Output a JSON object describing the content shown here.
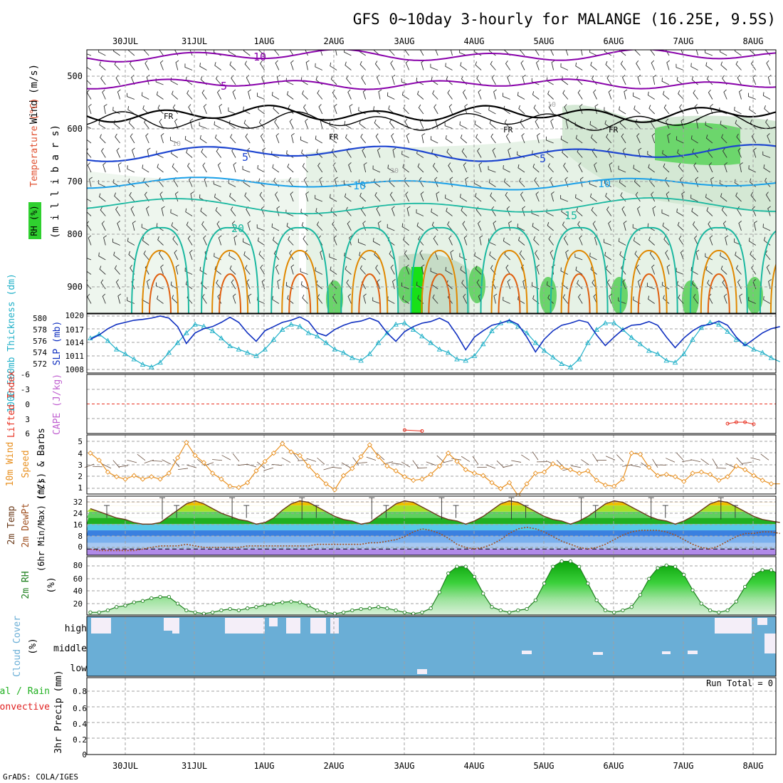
{
  "title": "GFS 0~10day 3-hourly for MALANGE (16.25E, 9.5S)",
  "credit": "GrADS: COLA/IGES",
  "dates": [
    "30JUL",
    "31JUL",
    "1AUG",
    "2AUG",
    "3AUG",
    "4AUG",
    "5AUG",
    "6AUG",
    "7AUG",
    "8AUG"
  ],
  "colors": {
    "grid": "#a0a0a0",
    "rh_fill": "#2fd02f",
    "temp_purple": "#8800aa",
    "temp_blue": "#1c44d0",
    "temp_light_blue": "#1aa0e8",
    "temp_teal": "#1ab8a0",
    "temp_orange": "#e08800",
    "slp_line": "#1030c0",
    "thickness_line": "#20b0c8",
    "li_line": "#e83020",
    "wind_line": "#e89020",
    "temp2m_line": "#6a3a1a",
    "dewpt_line": "#a05020",
    "rh2m_line": "#208020",
    "cloud_fill": "#6aaed6",
    "cloud_gap": "#f4eef8"
  },
  "panels": {
    "upper": {
      "ylabel_wind": "Wind (m/s)",
      "ylabel_temp": "Temperature (°C)",
      "ylabel_rh": "RH (%)",
      "ylabel_pressure": "(m i l l i b a r s)",
      "yticks": [
        "500",
        "600",
        "700",
        "800",
        "900"
      ],
      "contour_labels": [
        "10",
        "5",
        "FR",
        "FR",
        "FR",
        "FR",
        "5",
        "5",
        "10",
        "10",
        "15",
        "20",
        "10",
        "30",
        "10",
        "5",
        "10",
        "5"
      ]
    },
    "slp": {
      "ylabel_left": "1000-500mb Thickness (dm)",
      "ylabel_right": "SLP (mb)",
      "left_ticks": [
        "580",
        "578",
        "576",
        "574",
        "572"
      ],
      "right_ticks": [
        "1020",
        "1017",
        "1014",
        "1011",
        "1008"
      ]
    },
    "cape": {
      "ylabel_left": "Lifted Index",
      "ylabel_right": "CAPE (J/kg)",
      "ticks": [
        "-6",
        "-3",
        "0",
        "3",
        "6"
      ]
    },
    "wind10": {
      "ylabel_a": "10m Wind",
      "ylabel_b": "Speed",
      "ylabel_c": "(m/s) & Barbs",
      "ticks": [
        "5",
        "4",
        "3",
        "2",
        "1"
      ]
    },
    "temp2m": {
      "ylabel_a": "2m Temp",
      "ylabel_b": "2m DewPt",
      "ylabel_c": "(6hr Min/Max) (°C)",
      "ticks": [
        "32",
        "24",
        "16",
        "8",
        "0"
      ]
    },
    "rh2m": {
      "ylabel_a": "2m RH",
      "ylabel_b": "(%)",
      "ticks": [
        "80",
        "60",
        "40",
        "20"
      ]
    },
    "cloud": {
      "ylabel_a": "Cloud Cover",
      "ylabel_b": "(%)",
      "levels": [
        "high",
        "middle",
        "low"
      ]
    },
    "precip": {
      "ylabel_a": "Total / Rain",
      "ylabel_b": "Convective",
      "ylabel_c": "3hr Precip (mm)",
      "ticks": [
        "0.8",
        "0.6",
        "0.4",
        "0.2",
        "0"
      ],
      "run_total": "Run Total = 0"
    }
  },
  "chart_data": [
    {
      "type": "line",
      "name": "slp",
      "ylabel": "SLP (mb)",
      "ylim": [
        1006,
        1020
      ],
      "x_start": "29JUL 12Z",
      "x_step_hours": 3,
      "series": [
        {
          "values": [
            1014,
            1015,
            1016.5,
            1017.5,
            1018,
            1018.5,
            1018.7,
            1019,
            1019.5,
            1019,
            1017,
            1013,
            1015.5,
            1016.5,
            1017,
            1018,
            1019.2,
            1018,
            1015.5,
            1013.5,
            1016,
            1017,
            1018,
            1018.5,
            1019.3,
            1018.2,
            1015.5,
            1014.8,
            1016.3,
            1017.3,
            1018,
            1018.3,
            1019,
            1018.2,
            1015.5,
            1013.5,
            1015.8,
            1017,
            1017.8,
            1018.2,
            1019,
            1018,
            1015,
            1011.5,
            1014.5,
            1016,
            1017.3,
            1017.8,
            1018.5,
            1017.5,
            1014.5,
            1011,
            1014,
            1016,
            1017.3,
            1017.8,
            1018.5,
            1018,
            1015,
            1012.5,
            1014.5,
            1016.3,
            1017.3,
            1017.5,
            1018.2,
            1017.3,
            1014.5,
            1012,
            1014.3,
            1016,
            1017.2,
            1017.5,
            1018.3,
            1017.3,
            1014.5,
            1012.5,
            1014,
            1015.5,
            1016.5,
            1017,
            1017.5,
            1016.5,
            1013.5,
            1011,
            1013.5,
            1015.2,
            1015.8,
            1016,
            1016.5,
            1015.8,
            1013,
            1010.5,
            1013,
            1014.5,
            1015.2,
            1015.5
          ]
        }
      ]
    },
    {
      "type": "line",
      "name": "thickness",
      "ylabel": "1000-500mb Thickness (dm)",
      "ylim": [
        571,
        580
      ],
      "x_start": "29JUL 12Z",
      "x_step_hours": 3,
      "series": [
        {
          "values": [
            576.2,
            576.8,
            575.8,
            574.5,
            573.8,
            573,
            572.2,
            571.8,
            572.5,
            574,
            575.5,
            577,
            578.3,
            578,
            577.3,
            576.2,
            575,
            574.5,
            574,
            573.5,
            574.5,
            576,
            577.5,
            578.3,
            578,
            577,
            576.5,
            575.5,
            574.5,
            574,
            573.2,
            572.8,
            573.8,
            575.5,
            577,
            578.3,
            578.5,
            577.5,
            576.5,
            575.5,
            574.5,
            574,
            573,
            572.8,
            573.5,
            575.3,
            577.3,
            578.5,
            578.8,
            578,
            577,
            575.5,
            574.3,
            573.3,
            572.3,
            571.8,
            573,
            575.5,
            577.5,
            578.5,
            578.5,
            577.5,
            576.3,
            575.3,
            574.3,
            573.8,
            572.8,
            572.5,
            573.8,
            576,
            577.8,
            578.6,
            578.3,
            577.2,
            576,
            575.3,
            574.5,
            574,
            573.2,
            572.6,
            573.3,
            575.5,
            577.5,
            578.6,
            578.3,
            577,
            575.8,
            574.8,
            574,
            573.5,
            573,
            573.5,
            574.5,
            575.5,
            576,
            576.3
          ]
        }
      ]
    },
    {
      "type": "line",
      "name": "lifted_index",
      "ylabel": "Lifted Index",
      "ylim": [
        -6,
        6
      ],
      "x_start": "29JUL 12Z",
      "x_step_hours": 3,
      "series": [
        {
          "values": [
            6.5,
            6.5,
            6.5,
            6.5,
            6.5,
            6.5,
            6.5,
            6.5,
            6.5,
            6.5,
            6.5,
            6.5,
            6.5,
            6.5,
            6.5,
            6.5,
            6.5,
            6.5,
            6.5,
            6.5,
            6.5,
            6.5,
            6.5,
            6.5,
            6.5,
            6.5,
            6.5,
            6.5,
            6.5,
            6.5,
            6.5,
            6.5,
            6.5,
            6.5,
            6.5,
            6.5,
            6.5,
            6.5,
            6.5,
            6.5,
            6.5,
            6.5,
            6.5,
            6.5,
            6.5,
            6.5,
            6.5,
            6.5,
            6.5,
            6.5,
            6.5,
            6.5,
            6.5,
            6.5,
            6.5,
            6.5,
            6.5,
            6.5,
            6.5,
            6.5,
            6.5,
            6.5,
            6.5,
            6.5,
            6.5,
            6.5,
            6.5,
            6.5,
            6.5,
            6.5,
            6.5,
            6.5,
            6.5,
            6.5,
            6.5,
            6.5,
            6.5,
            6.5,
            6.5,
            6.5,
            6.5,
            6.5,
            6.5,
            6.5,
            6.5,
            6.5,
            6.5,
            6.5,
            6.5,
            6.5,
            6.5,
            6.5,
            6.5,
            6.5,
            6.5,
            6.5,
            6.5,
            6.5,
            6.5,
            6.5,
            6.5,
            6.5,
            6.5,
            6.5,
            6.5,
            6.5,
            6.5,
            6.5,
            6.5,
            6.5,
            6.5,
            6.5,
            6.5,
            6.5,
            6.5,
            6.5,
            6.5,
            6.5,
            6.5,
            6.5,
            6.5,
            6.5,
            6.5,
            6.5,
            6.5,
            6.5,
            6.5,
            6.5,
            6.5,
            6.5,
            6.5,
            6.5,
            6.5,
            6.5,
            6.5,
            6.5,
            6.5,
            6.5,
            6.5,
            6.5,
            6.5,
            6.5
          ]
        }
      ],
      "note_points": [
        {
          "index": 36,
          "value": 5.3
        },
        {
          "index": 38,
          "value": 5.5
        },
        {
          "index": 73,
          "value": 4.0
        },
        {
          "index": 74,
          "value": 3.7
        },
        {
          "index": 75,
          "value": 3.7
        },
        {
          "index": 76,
          "value": 4.1
        },
        {
          "index": 85,
          "value": 4.3
        },
        {
          "index": 86,
          "value": 3.8
        }
      ]
    },
    {
      "type": "line",
      "name": "wind10m",
      "ylabel": "10m Wind Speed (m/s)",
      "ylim": [
        0.5,
        5.5
      ],
      "x_start": "29JUL 12Z",
      "x_step_hours": 3,
      "series": [
        {
          "values": [
            4.2,
            3.6,
            2.6,
            2.2,
            2.0,
            2.3,
            2.0,
            2.2,
            2.0,
            2.5,
            3.8,
            5.1,
            4.0,
            3.4,
            2.5,
            2.0,
            1.4,
            1.3,
            1.7,
            2.7,
            3.5,
            4.2,
            5.0,
            4.3,
            4.0,
            3.1,
            2.3,
            1.6,
            1.1,
            2.3,
            2.9,
            3.9,
            4.9,
            3.9,
            3.1,
            2.7,
            2.2,
            1.9,
            2.0,
            2.4,
            3.1,
            4.2,
            3.5,
            2.8,
            2.5,
            2.3,
            1.7,
            1.2,
            1.7,
            0.6,
            1.6,
            2.5,
            2.6,
            3.3,
            3.0,
            2.8,
            2.5,
            2.7,
            1.9,
            1.5,
            1.4,
            2.0,
            4.2,
            4.1,
            3.0,
            2.3,
            2.4,
            2.2,
            1.8,
            2.5,
            2.6,
            2.4,
            1.9,
            2.2,
            3.1,
            2.8,
            2.3,
            1.9,
            1.6,
            1.6,
            1.6,
            1.5,
            1.4,
            1.7,
            1.2,
            2.3,
            2.0,
            2.5,
            3.0,
            3.5,
            3.9,
            3.2,
            1.9,
            2.0,
            2.3,
            1.9,
            2.6,
            2.1,
            2.5,
            2.2,
            2.0,
            2.5,
            3.2,
            2.9,
            2.5,
            3.2,
            3.0,
            3.6,
            4.9,
            3.2,
            3.2,
            3.3,
            2.9,
            2.8,
            2.9,
            2.3,
            2.0,
            2.0,
            2.3,
            3.0,
            3.1,
            4.0,
            2.5,
            2.2,
            2.0,
            3.4,
            3.1,
            2.2,
            2.7,
            1.7
          ]
        }
      ]
    },
    {
      "type": "area",
      "name": "temp2m",
      "ylabel": "2m Temp (°C)",
      "ylim": [
        -4,
        34
      ],
      "x_start": "29JUL 12Z",
      "x_step_hours": 3,
      "series": [
        {
          "name": "2m Temp",
          "values": [
            26,
            24,
            22,
            20,
            19,
            17,
            16,
            16,
            17,
            21,
            25,
            29,
            31,
            29,
            26,
            23,
            21,
            19,
            18,
            16,
            17,
            20,
            25,
            29,
            31,
            30,
            27,
            24,
            21,
            19,
            18,
            16,
            17,
            21,
            25,
            29,
            31,
            30,
            27,
            24,
            21,
            19,
            18,
            16,
            18,
            21,
            25,
            29,
            31,
            30,
            27,
            24,
            21,
            19,
            18,
            16,
            18,
            21,
            25,
            29,
            31,
            30,
            27,
            24,
            21,
            19,
            18,
            16,
            18,
            21,
            25,
            29,
            31,
            30,
            27,
            24,
            21,
            19,
            18,
            17,
            18,
            21,
            25,
            29,
            31,
            30,
            27,
            24,
            21,
            19,
            18,
            17,
            18,
            21,
            25,
            29,
            31,
            30,
            27,
            24,
            21,
            19,
            18,
            17,
            16,
            15
          ]
        },
        {
          "name": "2m DewPt",
          "values": [
            0,
            -1,
            -1,
            -1,
            -1,
            -1,
            0,
            1,
            2,
            2,
            2,
            3,
            2,
            1,
            1,
            1,
            1,
            1,
            2,
            2,
            2,
            2,
            2,
            2,
            2,
            2,
            3,
            3,
            3,
            3,
            3,
            3,
            4,
            4,
            5,
            6,
            8,
            11,
            13,
            12,
            10,
            7,
            3,
            1,
            0,
            1,
            3,
            6,
            10,
            13,
            14,
            13,
            11,
            8,
            5,
            3,
            1,
            0,
            1,
            3,
            6,
            9,
            11,
            12,
            12,
            12,
            11,
            9,
            6,
            3,
            1,
            0,
            2,
            5,
            8,
            10,
            10,
            11,
            11,
            10,
            9,
            7,
            6,
            6,
            7,
            8,
            9,
            10,
            10,
            11,
            11,
            10,
            9,
            8,
            8,
            8,
            8,
            9,
            9,
            9,
            10,
            10,
            9,
            8,
            8,
            8,
            8,
            8,
            8,
            9
          ]
        }
      ]
    },
    {
      "type": "area",
      "name": "rh2m",
      "ylabel": "2m RH (%)",
      "ylim": [
        8,
        95
      ],
      "x_start": "29JUL 12Z",
      "x_step_hours": 3,
      "series": [
        {
          "values": [
            12,
            12,
            15,
            20,
            22,
            27,
            29,
            33,
            35,
            35,
            25,
            15,
            12,
            10,
            12,
            15,
            17,
            15,
            18,
            20,
            23,
            25,
            27,
            28,
            27,
            22,
            15,
            12,
            10,
            12,
            15,
            17,
            18,
            20,
            18,
            15,
            12,
            10,
            12,
            18,
            42,
            70,
            80,
            80,
            65,
            40,
            20,
            15,
            12,
            15,
            17,
            30,
            55,
            80,
            88,
            88,
            80,
            55,
            30,
            15,
            12,
            15,
            20,
            38,
            62,
            78,
            82,
            80,
            68,
            45,
            25,
            15,
            12,
            15,
            28,
            50,
            68,
            75,
            75,
            68,
            52,
            30,
            15,
            12,
            18,
            38,
            55,
            68,
            75,
            78,
            68,
            52,
            30,
            15,
            12,
            15,
            22,
            32,
            42,
            55,
            65,
            68,
            62,
            48,
            35,
            25,
            18,
            20,
            30,
            40,
            48,
            55,
            60,
            55
          ]
        }
      ]
    },
    {
      "type": "heatmap",
      "name": "cloud_cover",
      "ylabel": "Cloud Cover (%)",
      "rows": [
        "high",
        "middle",
        "low"
      ],
      "values_pct": {
        "high": "mostly 100% overcast; gaps on 29-30JUL, 30JUL afternoon, 31JUL late, 1AUG, 2AUG early and 7AUG-8AUG",
        "middle": "100% throughout with small gaps on 5AUG, 6AUG, 7AUG and 8AUG",
        "low": "100% throughout with one small gap on 3AUG"
      }
    },
    {
      "type": "bar",
      "name": "precip3h",
      "ylabel": "3hr Precip (mm)",
      "ylim": [
        0,
        0.9
      ],
      "values": [],
      "run_total": "Run Total = 0"
    }
  ]
}
